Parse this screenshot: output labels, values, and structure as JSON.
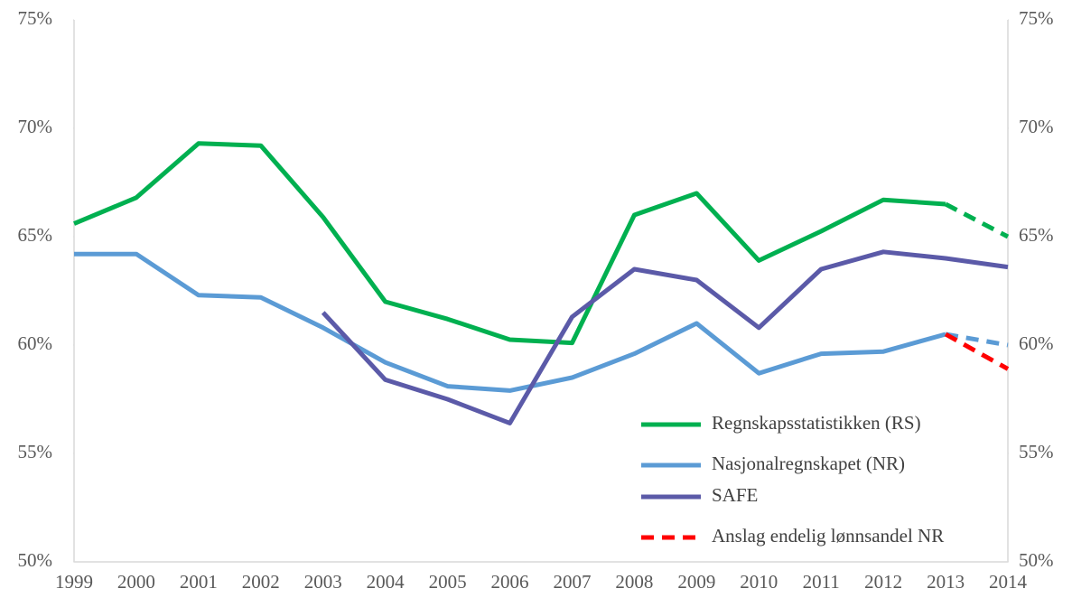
{
  "chart_data": {
    "type": "line",
    "categories": [
      "1999",
      "2000",
      "2001",
      "2002",
      "2003",
      "2004",
      "2005",
      "2006",
      "2007",
      "2008",
      "2009",
      "2010",
      "2011",
      "2012",
      "2013",
      "2014"
    ],
    "series": [
      {
        "name": "Regnskapsstatistikken (RS)",
        "color": "#00b050",
        "dash_from": 14,
        "values": [
          65.6,
          66.8,
          69.3,
          69.2,
          65.9,
          62.0,
          61.2,
          60.25,
          60.1,
          66.0,
          67.0,
          63.9,
          65.25,
          66.7,
          66.5,
          65.0
        ]
      },
      {
        "name": "Nasjonalregnskapet (NR)",
        "color": "#5b9bd5",
        "dash_from": 14,
        "values": [
          64.2,
          64.2,
          62.3,
          62.2,
          60.8,
          59.2,
          58.1,
          57.9,
          58.5,
          59.6,
          61.0,
          58.7,
          59.6,
          59.7,
          60.5,
          60.0
        ]
      },
      {
        "name": "SAFE",
        "color": "#5b5aa8",
        "values": [
          null,
          null,
          null,
          null,
          61.5,
          58.4,
          57.5,
          56.4,
          61.3,
          63.5,
          63.0,
          60.8,
          63.5,
          64.3,
          64.0,
          63.6
        ]
      },
      {
        "name": "Anslag endelig lønnsandel NR",
        "color": "#ff0000",
        "dash_from": 0,
        "values": [
          null,
          null,
          null,
          null,
          null,
          null,
          null,
          null,
          null,
          null,
          null,
          null,
          null,
          null,
          60.5,
          58.9
        ]
      }
    ],
    "ylim": [
      50,
      75
    ],
    "yticks": [
      {
        "value": 50,
        "label": "50%"
      },
      {
        "value": 55,
        "label": "55%"
      },
      {
        "value": 60,
        "label": "60%"
      },
      {
        "value": 65,
        "label": "65%"
      },
      {
        "value": 70,
        "label": "70%"
      },
      {
        "value": 75,
        "label": "75%"
      }
    ],
    "y2lim": [
      50,
      75
    ],
    "y2ticks": [
      {
        "value": 50,
        "label": "50%"
      },
      {
        "value": 55,
        "label": "55%"
      },
      {
        "value": 60,
        "label": "60%"
      },
      {
        "value": 65,
        "label": "65%"
      },
      {
        "value": 70,
        "label": "70%"
      },
      {
        "value": 75,
        "label": "75%"
      }
    ],
    "grid": false,
    "legend": "lower right"
  }
}
